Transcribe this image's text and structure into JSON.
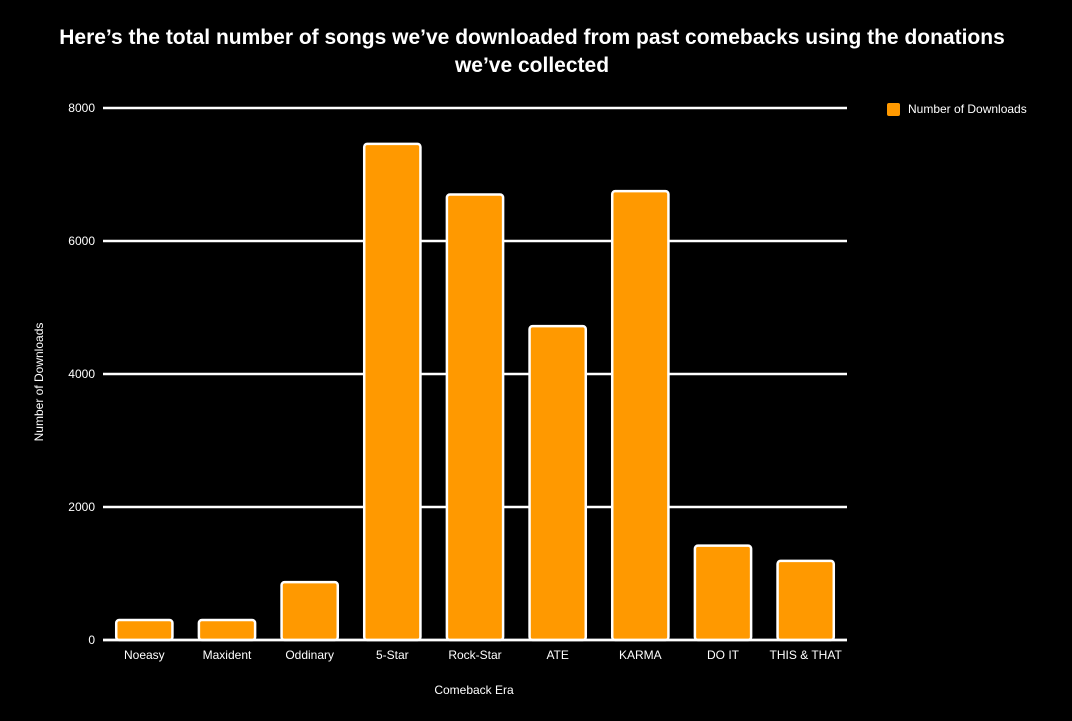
{
  "chart_data": {
    "type": "bar",
    "title_line1": "Here’s the total number of songs we’ve downloaded from past comebacks using the donations",
    "title_line2": "we’ve collected",
    "xlabel": "Comeback Era",
    "ylabel": "Number of Downloads",
    "categories": [
      "Noeasy",
      "Maxident",
      "Oddinary",
      "5-Star",
      "Rock-Star",
      "ATE",
      "KARMA",
      "DO IT",
      "THIS & THAT"
    ],
    "series": [
      {
        "name": "Number of Downloads",
        "values": [
          300,
          300,
          870,
          7460,
          6700,
          4720,
          6750,
          1420,
          1190
        ],
        "color": "#FF9900"
      }
    ],
    "ylim": [
      0,
      8000
    ],
    "yticks": [
      0,
      2000,
      4000,
      6000,
      8000
    ],
    "grid": true,
    "legend_position": "top-right",
    "colors": {
      "background": "#000000",
      "bar_border": "#FFFFFF",
      "grid": "#FFFFFF",
      "text": "#FFFFFF"
    }
  }
}
